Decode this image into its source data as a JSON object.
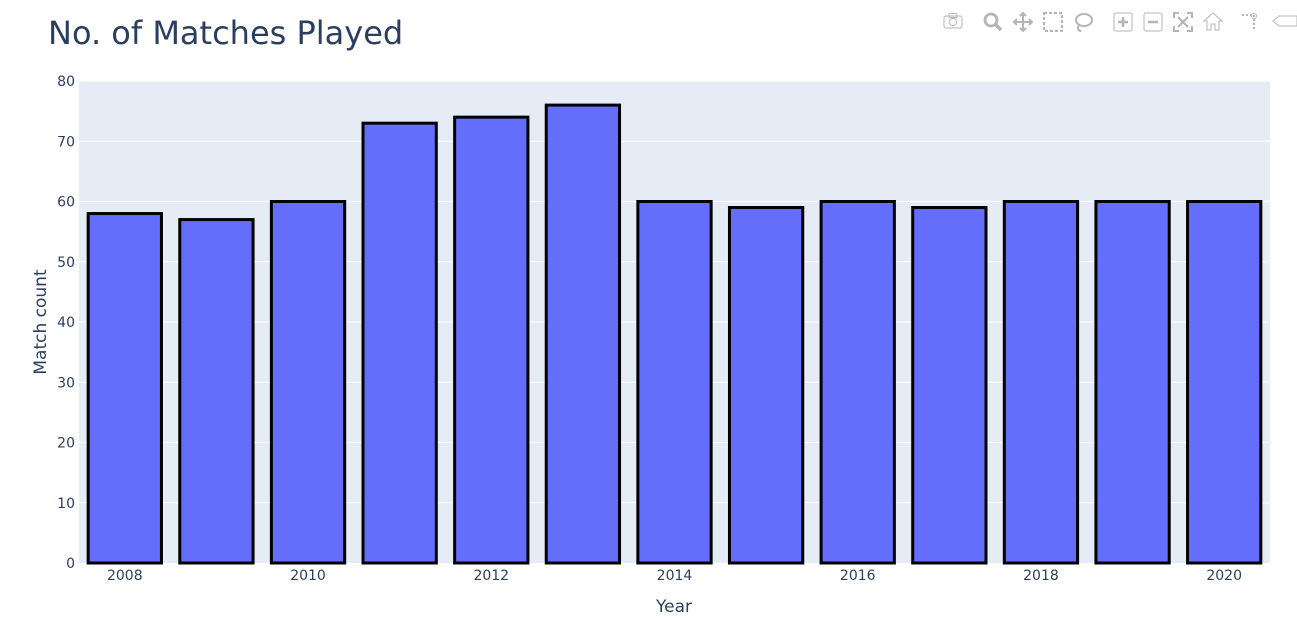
{
  "chart_data": {
    "type": "bar",
    "title": "No. of Matches Played",
    "xlabel": "Year",
    "ylabel": "Match count",
    "categories": [
      2008,
      2009,
      2010,
      2011,
      2012,
      2013,
      2014,
      2015,
      2016,
      2017,
      2018,
      2019,
      2020
    ],
    "values": [
      58,
      57,
      60,
      73,
      74,
      76,
      60,
      59,
      60,
      59,
      60,
      60,
      60
    ],
    "x_tick_labels": [
      "2008",
      "2010",
      "2012",
      "2014",
      "2016",
      "2018",
      "2020"
    ],
    "y_tick_labels": [
      "0",
      "10",
      "20",
      "30",
      "40",
      "50",
      "60",
      "70",
      "80"
    ],
    "ylim": [
      0,
      80
    ],
    "grid": true,
    "legend": "none",
    "colors": {
      "bar_fill": "#636efa",
      "bar_outline": "#000000",
      "plot_background": "#e5ecf6",
      "grid": "#ffffff",
      "text": "#2a3f5f"
    }
  },
  "modebar": {
    "icons": [
      "camera-icon",
      "zoom-icon",
      "pan-icon",
      "box-select-icon",
      "lasso-select-icon",
      "zoom-in-icon",
      "zoom-out-icon",
      "autoscale-icon",
      "reset-axes-icon",
      "spike-lines-icon",
      "hover-closest-icon"
    ]
  }
}
